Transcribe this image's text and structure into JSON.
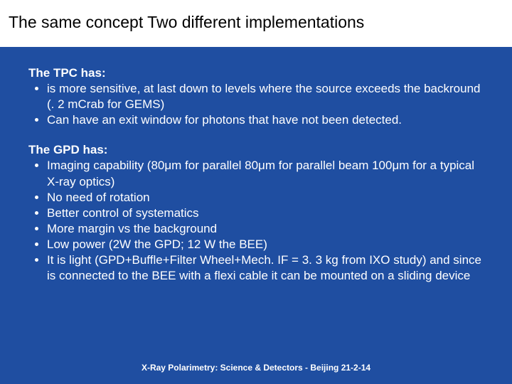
{
  "colors": {
    "slide_background": "#1f4ea1",
    "title_bar_background": "#ffffff",
    "title_text": "#000000",
    "body_text": "#ffffff"
  },
  "typography": {
    "font_family": "Comic Sans MS",
    "title_fontsize_pt": 23,
    "body_fontsize_pt": 17,
    "footer_fontsize_pt": 12
  },
  "slide": {
    "title": "The same concept Two different implementations",
    "sections": [
      {
        "header": "The TPC has:",
        "bullets": [
          "is more sensitive, at last down to levels where the source exceeds the backround (. 2 mCrab for GEMS)",
          "Can have an exit window for photons that have not been detected."
        ]
      },
      {
        "header": "The GPD has:",
        "bullets": [
          "Imaging capability (80μm  for parallel 80μm   for parallel beam 100μm for a typical X-ray optics)",
          "No need of rotation",
          "Better control of systematics",
          "More margin vs the background",
          "Low power (2W the GPD; 12 W the BEE)",
          "It is light (GPD+Buffle+Filter Wheel+Mech. IF = 3. 3 kg from IXO study) and since is connected to the BEE with a flexi cable it can be mounted on a sliding device"
        ]
      }
    ],
    "footer": "X-Ray Polarimetry: Science & Detectors  -  Beijing 21-2-14"
  }
}
